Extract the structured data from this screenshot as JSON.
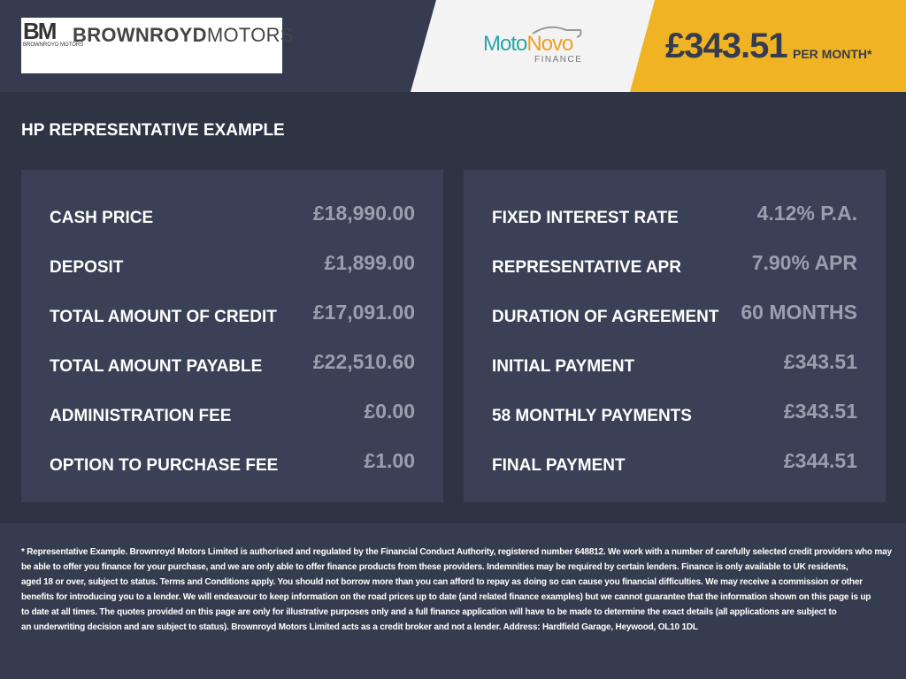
{
  "header": {
    "dealer_logo": {
      "monogram": "BM",
      "sub": "BROWNROYD MOTORS",
      "name_bold": "BROWNROYD",
      "name_light": "MOTORS"
    },
    "finance_logo": {
      "part1": "Moto",
      "part2": "Novo",
      "sub": "FINANCE"
    },
    "monthly_price": "£343.51",
    "per_month": "PER MONTH*"
  },
  "colors": {
    "accent": "#f0b323",
    "panel": "#3a4055",
    "value_text": "#9a9fae"
  },
  "title": "HP REPRESENTATIVE EXAMPLE",
  "left": [
    {
      "label": "CASH PRICE",
      "value": "£18,990.00"
    },
    {
      "label": "DEPOSIT",
      "value": "£1,899.00"
    },
    {
      "label": "TOTAL AMOUNT OF CREDIT",
      "value": "£17,091.00"
    },
    {
      "label": "TOTAL AMOUNT PAYABLE",
      "value": "£22,510.60"
    },
    {
      "label": "ADMINISTRATION FEE",
      "value": "£0.00"
    },
    {
      "label": "OPTION TO PURCHASE FEE",
      "value": "£1.00"
    }
  ],
  "right": [
    {
      "label": "FIXED INTEREST RATE",
      "value": "4.12% P.A."
    },
    {
      "label": "REPRESENTATIVE APR",
      "value": "7.90% APR"
    },
    {
      "label": "DURATION OF AGREEMENT",
      "value": "60 MONTHS"
    },
    {
      "label": "INITIAL PAYMENT",
      "value": "£343.51"
    },
    {
      "label": "58 MONTHLY PAYMENTS",
      "value": "£343.51"
    },
    {
      "label": "FINAL PAYMENT",
      "value": "£344.51"
    }
  ],
  "disclaimer": [
    "* Representative Example. Brownroyd Motors Limited is authorised and regulated by the Financial Conduct Authority, registered number 648812. We work with a number of carefully selected credit providers who may",
    "be able to offer you finance for your purchase, and we are only able to offer finance products from these providers. Indemnities may be required by certain lenders. Finance is only available to UK residents,",
    "aged 18 or over, subject to status. Terms and Conditions apply. You should not borrow more than you can afford to repay as doing so can cause you financial difficulties. We may receive a commission or other",
    "benefits for introducing you to a lender. We will endeavour to keep information on the road prices up to date (and related finance examples) but we cannot guarantee that the information shown on this page is up",
    "to date at all times. The quotes provided on this page are only for illustrative purposes only and a full finance application will have to be made to determine the exact details (all applications are subject to",
    "an underwriting decision and are subject to status). Brownroyd Motors Limited acts as a credit broker and not a lender. Address: Hardfield Garage, Heywood, OL10 1DL"
  ]
}
